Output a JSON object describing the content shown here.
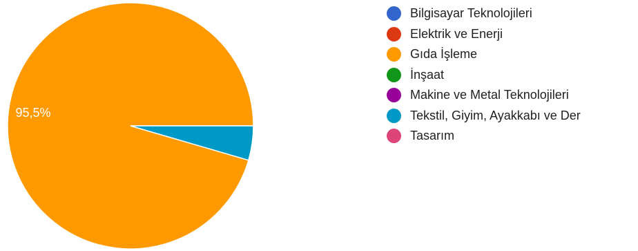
{
  "chart_data": {
    "type": "pie",
    "slices": [
      {
        "label": "Bilgisayar Teknolojileri",
        "value": 0,
        "color": "#3366cc"
      },
      {
        "label": "Elektrik ve Enerji",
        "value": 0,
        "color": "#dc3912"
      },
      {
        "label": "Gıda İşleme",
        "value": 95.5,
        "color": "#ff9900"
      },
      {
        "label": "İnşaat",
        "value": 0,
        "color": "#109618"
      },
      {
        "label": "Makine ve Metal Teknolojileri",
        "value": 0,
        "color": "#990099"
      },
      {
        "label": "Tekstil, Giyim, Ayakkabı ve Der",
        "value": 4.5,
        "color": "#0099c6"
      },
      {
        "label": "Tasarım",
        "value": 0,
        "color": "#dd4477"
      }
    ],
    "data_labels": [
      {
        "slice": "Gıda İşleme",
        "text": "95,5%"
      }
    ],
    "legend_placement": "right"
  }
}
